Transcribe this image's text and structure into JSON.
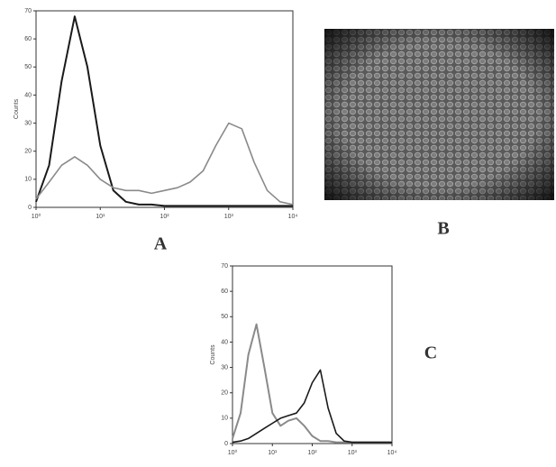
{
  "chart_data": [
    {
      "type": "line",
      "panel_label": "A",
      "ylabel": "Counts",
      "log_x": true,
      "x": [
        1,
        1.6,
        2.5,
        4,
        6.3,
        10,
        16,
        25,
        40,
        63,
        100,
        160,
        250,
        400,
        630,
        1000,
        1600,
        2500,
        4000,
        6300,
        10000
      ],
      "xlim": [
        1,
        10000
      ],
      "xticks": [
        {
          "value": 1,
          "label": "10⁰"
        },
        {
          "value": 10,
          "label": "10¹"
        },
        {
          "value": 100,
          "label": "10²"
        },
        {
          "value": 1000,
          "label": "10³"
        },
        {
          "value": 10000,
          "label": "10⁴"
        }
      ],
      "ylim": [
        0,
        70
      ],
      "yticks": [
        0,
        10,
        20,
        30,
        40,
        50,
        60,
        70
      ],
      "series": [
        {
          "color": "#1a1a1a",
          "values": [
            2,
            15,
            45,
            68,
            50,
            22,
            6,
            2,
            1,
            1,
            0.5,
            0.5,
            0.5,
            0.5,
            0.5,
            0.5,
            0.5,
            0.5,
            0.5,
            0.5,
            0.5
          ]
        },
        {
          "color": "#8a8a8a",
          "values": [
            3,
            9,
            15,
            18,
            15,
            10,
            7,
            6,
            6,
            5,
            6,
            7,
            9,
            13,
            22,
            30,
            28,
            16,
            6,
            2,
            1
          ]
        }
      ]
    },
    {
      "type": "line",
      "panel_label": "C",
      "ylabel": "Counts",
      "log_x": true,
      "x": [
        1,
        1.6,
        2.5,
        4,
        6.3,
        10,
        16,
        25,
        40,
        63,
        100,
        160,
        250,
        400,
        630,
        1000,
        1600,
        2500,
        4000,
        6300,
        10000
      ],
      "xlim": [
        1,
        10000
      ],
      "xticks": [
        {
          "value": 1,
          "label": "10⁰"
        },
        {
          "value": 10,
          "label": "10¹"
        },
        {
          "value": 100,
          "label": "10²"
        },
        {
          "value": 1000,
          "label": "10³"
        },
        {
          "value": 10000,
          "label": "10⁴"
        }
      ],
      "ylim": [
        0,
        70
      ],
      "yticks": [
        0,
        10,
        20,
        30,
        40,
        50,
        60,
        70
      ],
      "series": [
        {
          "color": "#8a8a8a",
          "values": [
            2,
            12,
            35,
            47,
            30,
            12,
            7,
            9,
            10,
            7,
            3,
            1,
            1,
            0.5,
            0.5,
            0.5,
            0.5,
            0.5,
            0.5,
            0.5,
            0.5
          ]
        },
        {
          "color": "#1a1a1a",
          "values": [
            0.5,
            1,
            2,
            4,
            6,
            8,
            10,
            11,
            12,
            16,
            24,
            29,
            14,
            4,
            1,
            0.5,
            0.5,
            0.5,
            0.5,
            0.5,
            0.5
          ]
        }
      ]
    }
  ],
  "image_panel": {
    "label": "B"
  }
}
